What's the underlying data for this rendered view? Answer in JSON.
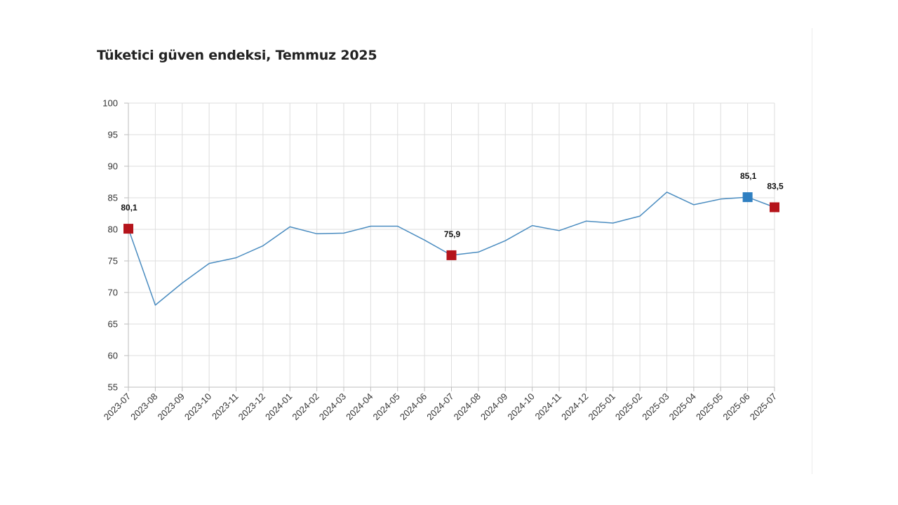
{
  "chart_data": {
    "type": "line",
    "title": "Tüketici güven endeksi, Temmuz 2025",
    "xlabel": "",
    "ylabel": "",
    "ylim": [
      55,
      100
    ],
    "yticks": [
      55,
      60,
      65,
      70,
      75,
      80,
      85,
      90,
      95,
      100
    ],
    "grid": true,
    "legend": "none",
    "categories": [
      "2023-07",
      "2023-08",
      "2023-09",
      "2023-10",
      "2023-11",
      "2023-12",
      "2024-01",
      "2024-02",
      "2024-03",
      "2024-04",
      "2024-05",
      "2024-06",
      "2024-07",
      "2024-08",
      "2024-09",
      "2024-10",
      "2024-11",
      "2024-12",
      "2025-01",
      "2025-02",
      "2025-03",
      "2025-04",
      "2025-05",
      "2025-06",
      "2025-07"
    ],
    "series": [
      {
        "values": [
          80.1,
          68.0,
          71.5,
          74.6,
          75.5,
          77.4,
          80.4,
          79.3,
          79.4,
          80.5,
          80.5,
          78.3,
          75.9,
          76.4,
          78.2,
          80.6,
          79.8,
          81.3,
          81.0,
          82.1,
          85.9,
          83.9,
          84.8,
          85.1,
          83.5
        ],
        "color": "#4a8cc0"
      }
    ],
    "highlights": [
      {
        "category": "2023-07",
        "value": 80.1,
        "label": "80,1",
        "color": "#b5141b"
      },
      {
        "category": "2024-07",
        "value": 75.9,
        "label": "75,9",
        "color": "#b5141b"
      },
      {
        "category": "2025-06",
        "value": 85.1,
        "label": "85,1",
        "color": "#2f7fc1"
      },
      {
        "category": "2025-07",
        "value": 83.5,
        "label": "83,5",
        "color": "#b5141b"
      }
    ]
  }
}
